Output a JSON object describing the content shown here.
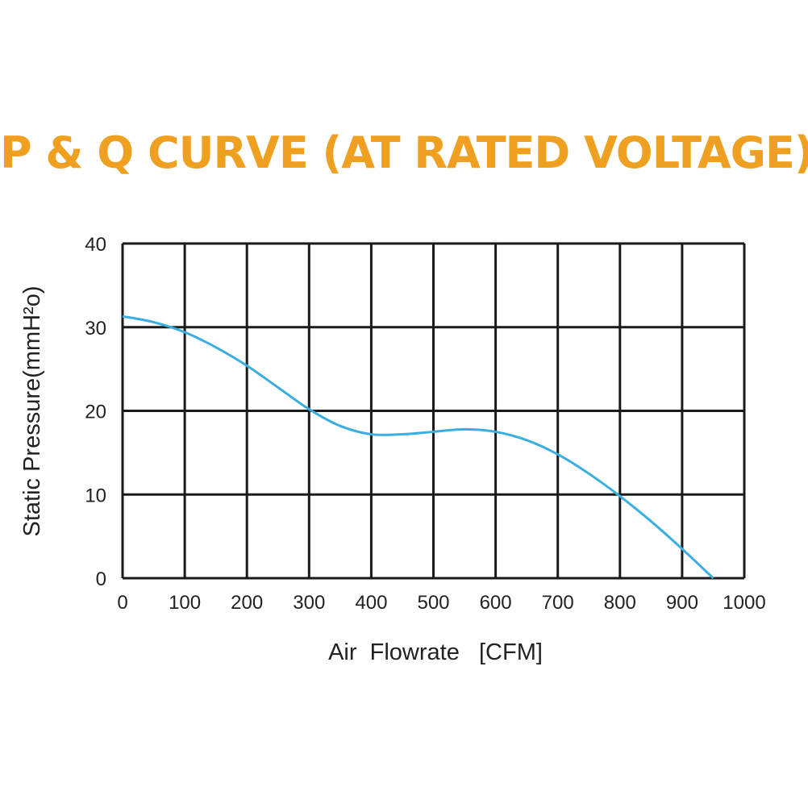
{
  "chart_data": {
    "type": "line",
    "title": "P & Q CURVE (AT RATED VOLTAGE)",
    "title_color": "#f0a020",
    "xlabel": "Air  Flowrate   [CFM]",
    "ylabel": "Static Pressure(mmH²o)",
    "xlim": [
      0,
      1000
    ],
    "ylim": [
      0,
      40
    ],
    "xticks": [
      "0",
      "100",
      "200",
      "300",
      "400",
      "500",
      "600",
      "700",
      "800",
      "900",
      "1000"
    ],
    "yticks": [
      "0",
      "10",
      "20",
      "30",
      "40"
    ],
    "grid": true,
    "line_color": "#3aaee0",
    "series": [
      {
        "x": [
          0,
          50,
          100,
          150,
          200,
          250,
          300,
          350,
          400,
          450,
          500,
          550,
          600,
          650,
          700,
          750,
          800,
          850,
          900,
          950
        ],
        "values": [
          31.3,
          30.6,
          29.4,
          27.6,
          25.4,
          22.8,
          20.2,
          18.2,
          17.2,
          17.2,
          17.5,
          17.8,
          17.5,
          16.5,
          14.8,
          12.5,
          9.8,
          6.8,
          3.5,
          0
        ]
      }
    ]
  }
}
